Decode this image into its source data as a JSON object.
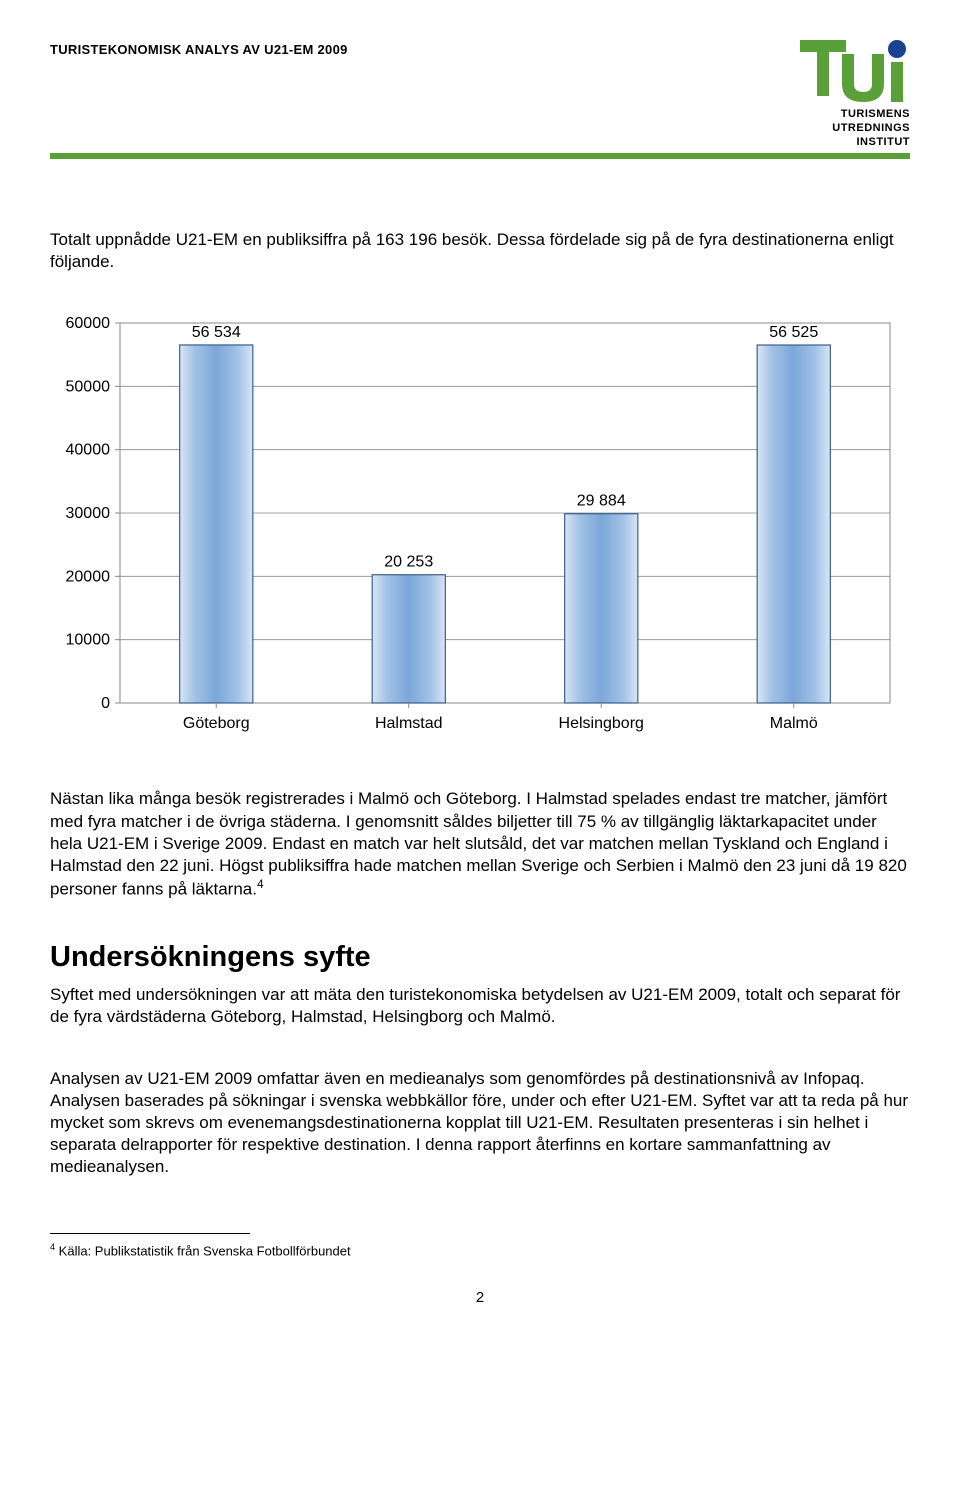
{
  "header": {
    "doc_title": "TURISTEKONOMISK ANALYS AV U21-EM 2009",
    "logo": {
      "green": "#5aa038",
      "blue": "#1b4292",
      "text1": "TURISMENS",
      "text2": "UTREDNINGS",
      "text3": "INSTITUT"
    }
  },
  "green_bar_color": "#5aa038",
  "intro_text": "Totalt uppnådde U21-EM en publiksiffra på 163 196 besök. Dessa fördelade sig på de fyra destinationerna enligt följande.",
  "chart": {
    "type": "bar",
    "categories": [
      "Göteborg",
      "Halmstad",
      "Helsingborg",
      "Malmö"
    ],
    "values": [
      56534,
      20253,
      29884,
      56525
    ],
    "value_labels": [
      "56 534",
      "20 253",
      "29 884",
      "56 525"
    ],
    "ymax": 60000,
    "ytick_step": 10000,
    "yticks": [
      "0",
      "10000",
      "20000",
      "30000",
      "40000",
      "50000",
      "60000"
    ],
    "bar_fill_top": "#d9e6f5",
    "bar_fill_mid": "#a3c2e6",
    "bar_fill_center": "#7ba7d9",
    "bar_border": "#3a5f8a",
    "grid_color": "#888888",
    "axis_color": "#888888",
    "plot_bg": "#ffffff",
    "label_fontsize": 16,
    "axis_fontsize": 16
  },
  "para2": "Nästan lika många besök registrerades i Malmö och Göteborg. I Halmstad spelades endast tre matcher, jämfört med fyra matcher i de övriga städerna. I genomsnitt såldes biljetter till 75 % av tillgänglig läktarkapacitet under hela U21-EM i Sverige 2009. Endast en match var helt slutsåld, det var matchen mellan Tyskland och England i Halmstad den 22 juni. Högst publiksiffra hade matchen mellan Sverige och Serbien i Malmö den 23 juni då 19 820 personer fanns på läktarna.",
  "para2_sup": "4",
  "section": {
    "title": "Undersökningens syfte",
    "p1": "Syftet med undersökningen var att mäta den turistekonomiska betydelsen av U21-EM 2009, totalt och separat för de fyra värdstäderna Göteborg, Halmstad, Helsingborg och Malmö.",
    "p2": "Analysen av U21-EM 2009 omfattar även en medieanalys som genomfördes på destinationsnivå av Infopaq. Analysen baserades på sökningar i svenska webbkällor före, under och efter U21-EM. Syftet var att ta reda på hur mycket som skrevs om evenemangsdestinationerna kopplat till U21-EM. Resultaten presenteras i sin helhet i separata delrapporter för respektive destination. I denna rapport återfinns en kortare sammanfattning av medieanalysen."
  },
  "footnote": {
    "marker": "4",
    "text": " Källa: Publikstatistik från Svenska Fotbollförbundet"
  },
  "page_number": "2"
}
